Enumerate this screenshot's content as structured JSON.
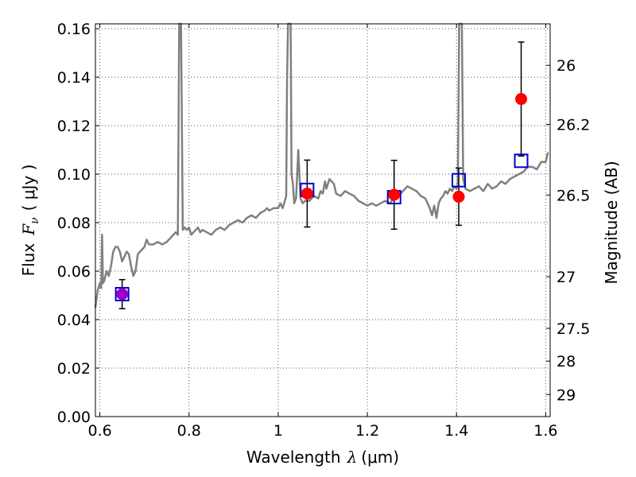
{
  "chart_data": {
    "type": "scatter",
    "xlabel_text": "Wavelength",
    "xlabel_symbol": "λ",
    "xlabel_unit": "(μm)",
    "ylabel_text": "Flux",
    "ylabel_symbol": "F",
    "ylabel_sub": "ν",
    "ylabel_unit": "( μJy )",
    "y2label": "Magnitude (AB)",
    "xlim": [
      0.59,
      1.61
    ],
    "ylim": [
      0.0,
      0.162
    ],
    "grid": true,
    "x_ticks": [
      0.6,
      0.8,
      1.0,
      1.2,
      1.4,
      1.6
    ],
    "x_tick_labels": [
      "0.6",
      "0.8",
      "1",
      "1.2",
      "1.4",
      "1.6"
    ],
    "y_ticks": [
      0.0,
      0.02,
      0.04,
      0.06,
      0.08,
      0.1,
      0.12,
      0.14,
      0.16
    ],
    "y_tick_labels": [
      "0.00",
      "0.02",
      "0.04",
      "0.06",
      "0.08",
      "0.10",
      "0.12",
      "0.14",
      "0.16"
    ],
    "y2_ticks": [
      {
        "label": "26",
        "flux": 0.1449
      },
      {
        "label": "26.2",
        "flux": 0.1205
      },
      {
        "label": "26.5",
        "flux": 0.0914
      },
      {
        "label": "27",
        "flux": 0.0577
      },
      {
        "label": "27.5",
        "flux": 0.0364
      },
      {
        "label": "28",
        "flux": 0.0229
      },
      {
        "label": "29",
        "flux": 0.0091
      }
    ],
    "colors": {
      "spectrum": "#808080",
      "observed": "#ff0000",
      "observed_faint": "#9900cc",
      "model": "#0000cc",
      "errorbar": "#000000",
      "grid": "#555555"
    },
    "series": [
      {
        "kind": "spectrum",
        "points": [
          [
            0.59,
            0.045
          ],
          [
            0.595,
            0.052
          ],
          [
            0.6,
            0.055
          ],
          [
            0.603,
            0.053
          ],
          [
            0.605,
            0.075
          ],
          [
            0.607,
            0.055
          ],
          [
            0.61,
            0.056
          ],
          [
            0.615,
            0.06
          ],
          [
            0.62,
            0.058
          ],
          [
            0.625,
            0.062
          ],
          [
            0.63,
            0.068
          ],
          [
            0.635,
            0.07
          ],
          [
            0.64,
            0.07
          ],
          [
            0.645,
            0.068
          ],
          [
            0.65,
            0.064
          ],
          [
            0.655,
            0.066
          ],
          [
            0.66,
            0.068
          ],
          [
            0.665,
            0.067
          ],
          [
            0.67,
            0.062
          ],
          [
            0.675,
            0.058
          ],
          [
            0.68,
            0.06
          ],
          [
            0.685,
            0.067
          ],
          [
            0.69,
            0.068
          ],
          [
            0.7,
            0.07
          ],
          [
            0.705,
            0.073
          ],
          [
            0.71,
            0.071
          ],
          [
            0.72,
            0.071
          ],
          [
            0.73,
            0.072
          ],
          [
            0.74,
            0.071
          ],
          [
            0.75,
            0.072
          ],
          [
            0.76,
            0.074
          ],
          [
            0.765,
            0.075
          ],
          [
            0.77,
            0.076
          ],
          [
            0.775,
            0.075
          ],
          [
            0.778,
            0.165
          ],
          [
            0.782,
            0.165
          ],
          [
            0.786,
            0.077
          ],
          [
            0.79,
            0.078
          ],
          [
            0.795,
            0.077
          ],
          [
            0.8,
            0.078
          ],
          [
            0.805,
            0.075
          ],
          [
            0.81,
            0.076
          ],
          [
            0.815,
            0.077
          ],
          [
            0.82,
            0.078
          ],
          [
            0.825,
            0.076
          ],
          [
            0.83,
            0.077
          ],
          [
            0.84,
            0.076
          ],
          [
            0.85,
            0.075
          ],
          [
            0.86,
            0.077
          ],
          [
            0.87,
            0.078
          ],
          [
            0.88,
            0.077
          ],
          [
            0.89,
            0.079
          ],
          [
            0.9,
            0.08
          ],
          [
            0.91,
            0.081
          ],
          [
            0.92,
            0.08
          ],
          [
            0.93,
            0.082
          ],
          [
            0.94,
            0.083
          ],
          [
            0.95,
            0.082
          ],
          [
            0.96,
            0.084
          ],
          [
            0.97,
            0.085
          ],
          [
            0.975,
            0.086
          ],
          [
            0.98,
            0.085
          ],
          [
            0.99,
            0.086
          ],
          [
            1.0,
            0.086
          ],
          [
            1.005,
            0.088
          ],
          [
            1.01,
            0.086
          ],
          [
            1.015,
            0.089
          ],
          [
            1.018,
            0.091
          ],
          [
            1.02,
            0.14
          ],
          [
            1.022,
            0.165
          ],
          [
            1.028,
            0.165
          ],
          [
            1.03,
            0.1
          ],
          [
            1.033,
            0.096
          ],
          [
            1.036,
            0.088
          ],
          [
            1.04,
            0.09
          ],
          [
            1.045,
            0.11
          ],
          [
            1.05,
            0.09
          ],
          [
            1.055,
            0.088
          ],
          [
            1.06,
            0.089
          ],
          [
            1.07,
            0.089
          ],
          [
            1.08,
            0.091
          ],
          [
            1.09,
            0.09
          ],
          [
            1.095,
            0.093
          ],
          [
            1.1,
            0.092
          ],
          [
            1.105,
            0.097
          ],
          [
            1.108,
            0.094
          ],
          [
            1.115,
            0.098
          ],
          [
            1.12,
            0.097
          ],
          [
            1.125,
            0.096
          ],
          [
            1.13,
            0.092
          ],
          [
            1.14,
            0.091
          ],
          [
            1.15,
            0.093
          ],
          [
            1.16,
            0.092
          ],
          [
            1.17,
            0.091
          ],
          [
            1.18,
            0.089
          ],
          [
            1.19,
            0.088
          ],
          [
            1.2,
            0.087
          ],
          [
            1.21,
            0.088
          ],
          [
            1.22,
            0.087
          ],
          [
            1.23,
            0.088
          ],
          [
            1.24,
            0.089
          ],
          [
            1.25,
            0.088
          ],
          [
            1.26,
            0.09
          ],
          [
            1.27,
            0.091
          ],
          [
            1.28,
            0.093
          ],
          [
            1.29,
            0.095
          ],
          [
            1.3,
            0.094
          ],
          [
            1.31,
            0.093
          ],
          [
            1.32,
            0.091
          ],
          [
            1.33,
            0.09
          ],
          [
            1.335,
            0.088
          ],
          [
            1.34,
            0.086
          ],
          [
            1.345,
            0.083
          ],
          [
            1.35,
            0.087
          ],
          [
            1.355,
            0.082
          ],
          [
            1.36,
            0.088
          ],
          [
            1.365,
            0.09
          ],
          [
            1.37,
            0.091
          ],
          [
            1.375,
            0.093
          ],
          [
            1.38,
            0.092
          ],
          [
            1.385,
            0.094
          ],
          [
            1.39,
            0.093
          ],
          [
            1.395,
            0.095
          ],
          [
            1.4,
            0.094
          ],
          [
            1.403,
            0.096
          ],
          [
            1.406,
            0.165
          ],
          [
            1.412,
            0.165
          ],
          [
            1.415,
            0.098
          ],
          [
            1.42,
            0.094
          ],
          [
            1.43,
            0.093
          ],
          [
            1.44,
            0.094
          ],
          [
            1.45,
            0.095
          ],
          [
            1.46,
            0.093
          ],
          [
            1.47,
            0.096
          ],
          [
            1.48,
            0.094
          ],
          [
            1.49,
            0.095
          ],
          [
            1.5,
            0.097
          ],
          [
            1.51,
            0.096
          ],
          [
            1.52,
            0.098
          ],
          [
            1.53,
            0.099
          ],
          [
            1.54,
            0.1
          ],
          [
            1.55,
            0.101
          ],
          [
            1.56,
            0.103
          ],
          [
            1.57,
            0.103
          ],
          [
            1.58,
            0.102
          ],
          [
            1.59,
            0.105
          ],
          [
            1.6,
            0.105
          ],
          [
            1.605,
            0.109
          ]
        ]
      },
      {
        "kind": "model_photometry",
        "points": [
          [
            0.65,
            0.0505
          ],
          [
            1.065,
            0.0935
          ],
          [
            1.26,
            0.0905
          ],
          [
            1.405,
            0.0975
          ],
          [
            1.545,
            0.1055
          ]
        ]
      },
      {
        "kind": "observed_photometry",
        "points": [
          {
            "x": 0.65,
            "y": 0.0505,
            "err": 0.006,
            "faint": true
          },
          {
            "x": 1.065,
            "y": 0.092,
            "err": 0.0138
          },
          {
            "x": 1.26,
            "y": 0.0915,
            "err": 0.0142
          },
          {
            "x": 1.405,
            "y": 0.0907,
            "err": 0.0118
          },
          {
            "x": 1.545,
            "y": 0.131,
            "err": 0.0235
          }
        ]
      }
    ]
  }
}
